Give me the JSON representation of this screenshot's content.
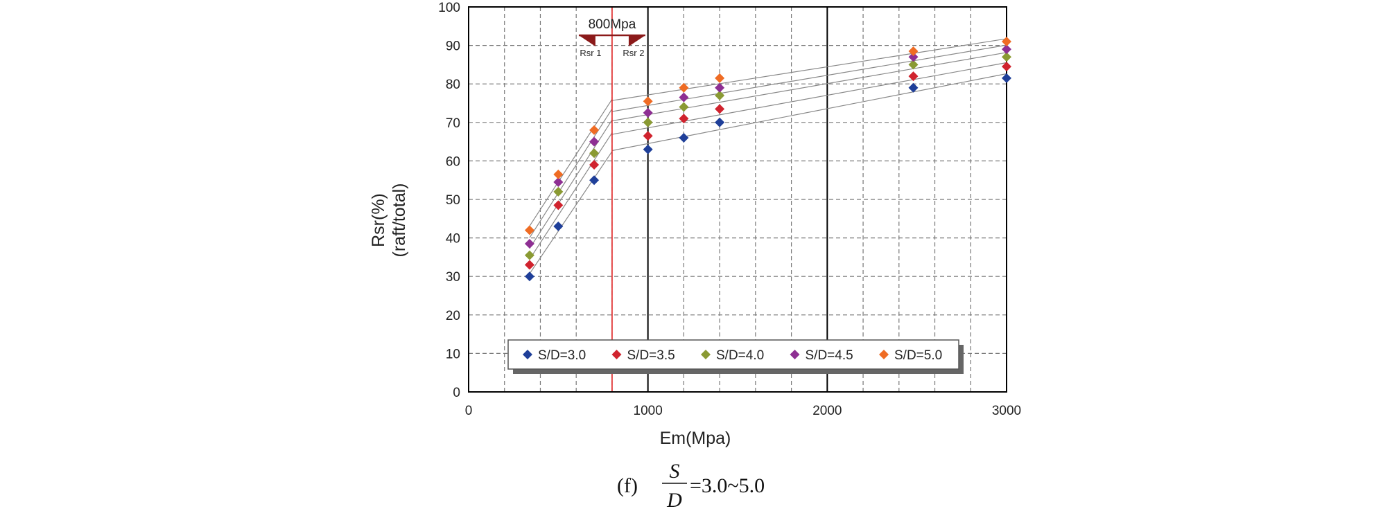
{
  "chart_data": {
    "type": "scatter",
    "xlabel": "Em(Mpa)",
    "ylabel_line1": "Rsr(%)",
    "ylabel_line2": "(raft/total)",
    "xlim": [
      0,
      3000
    ],
    "ylim": [
      0,
      100
    ],
    "xticks": [
      "0",
      "1000",
      "2000",
      "3000"
    ],
    "yticks": [
      "0",
      "10",
      "20",
      "30",
      "40",
      "50",
      "60",
      "70",
      "80",
      "90",
      "100"
    ],
    "grid": true,
    "legend_position": "bottom",
    "series": [
      {
        "name": "S/D=3.0",
        "color": "#1f3f99",
        "x": [
          340,
          500,
          700,
          1000,
          1200,
          1400,
          2480,
          3000
        ],
        "y": [
          30,
          43,
          55,
          63,
          66,
          70,
          79,
          81.5
        ]
      },
      {
        "name": "S/D=3.5",
        "color": "#d0232e",
        "x": [
          340,
          500,
          700,
          1000,
          1200,
          1400,
          2480,
          3000
        ],
        "y": [
          33,
          48.5,
          59,
          66.5,
          71,
          73.5,
          82,
          84.5
        ]
      },
      {
        "name": "S/D=4.0",
        "color": "#8a9a33",
        "x": [
          340,
          500,
          700,
          1000,
          1200,
          1400,
          2480,
          3000
        ],
        "y": [
          35.5,
          52,
          62,
          70,
          74,
          77,
          85,
          87
        ]
      },
      {
        "name": "S/D=4.5",
        "color": "#8e2f93",
        "x": [
          340,
          500,
          700,
          1000,
          1200,
          1400,
          2480,
          3000
        ],
        "y": [
          38.5,
          54.5,
          65,
          72.5,
          76.5,
          79,
          87,
          89
        ]
      },
      {
        "name": "S/D=5.0",
        "color": "#ef6c24",
        "x": [
          340,
          500,
          700,
          1000,
          1200,
          1400,
          2480,
          3000
        ],
        "y": [
          42,
          56.5,
          68,
          75.5,
          79,
          81.5,
          88.5,
          91
        ]
      }
    ],
    "annotation": {
      "threshold_x": 800,
      "threshold_label": "800Mpa",
      "left_label": "Rsr 1",
      "right_label": "Rsr 2",
      "threshold_color": "#e02020",
      "arrow_color": "#8b1a1a"
    }
  },
  "caption": {
    "prefix": "(f)",
    "numerator": "S",
    "denominator": "D",
    "suffix": "=3.0~5.0"
  }
}
